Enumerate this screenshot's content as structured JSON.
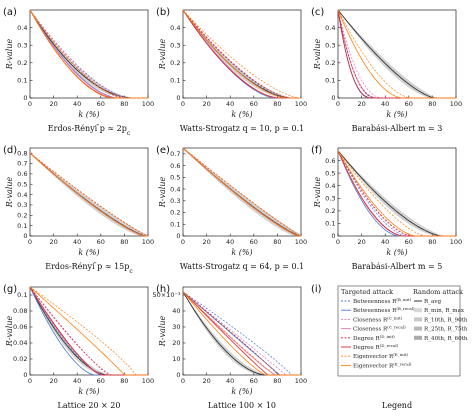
{
  "figure": {
    "ylabel_text": "R-value",
    "xlabel_text": "k (%)",
    "legend_caption": "Legend"
  },
  "colors": {
    "betweenness": "#4a7bd0",
    "closeness": "#e377c2",
    "degree": "#d62728",
    "eigenvector": "#ff7f0e",
    "random_band": "#9a9a9a",
    "random_line": "#222222"
  },
  "chart_data": [
    {
      "id": "a",
      "letter": "(a)",
      "type": "line",
      "caption": "Erdos-Rényi p ≈ 2p_c",
      "caption_display": "Erdos-Rényi ̄p ≈ 2p",
      "caption_sub": "c",
      "xlim": [
        0,
        100
      ],
      "ylim": [
        0,
        0.5
      ],
      "xticks": [
        0,
        20,
        40,
        60,
        80,
        100
      ],
      "yticks": [
        0,
        0.1,
        0.2,
        0.3,
        0.4
      ],
      "ytick_labels": [
        "0",
        "0.1",
        "0.2",
        "0.3",
        "0.4"
      ],
      "y0": 0.5,
      "end_k": {
        "betweenness": 75,
        "closeness": 74,
        "degree": 72,
        "eigenvector": 70,
        "random": 88
      },
      "bend": {
        "betweenness": 1.7,
        "closeness": 1.7,
        "degree": 1.75,
        "eigenvector": 1.7,
        "random": 1.9
      }
    },
    {
      "id": "b",
      "letter": "(b)",
      "type": "line",
      "caption": "Watts-Strogatz q = 10, p = 0.1",
      "xlim": [
        0,
        100
      ],
      "ylim": [
        0,
        0.5
      ],
      "xticks": [
        0,
        20,
        40,
        60,
        80,
        100
      ],
      "yticks": [
        0,
        0.1,
        0.2,
        0.3,
        0.4
      ],
      "ytick_labels": [
        "0",
        "0.1",
        "0.2",
        "0.3",
        "0.4"
      ],
      "y0": 0.5,
      "end_k": {
        "betweenness": 78,
        "closeness": 80,
        "degree": 82,
        "eigenvector": 88,
        "random": 92
      },
      "bend": {
        "betweenness": 1.6,
        "closeness": 1.6,
        "degree": 1.7,
        "eigenvector": 1.6,
        "random": 1.7
      }
    },
    {
      "id": "c",
      "letter": "(c)",
      "type": "line",
      "caption": "Barabási-Albert m = 3",
      "xlim": [
        0,
        100
      ],
      "ylim": [
        0,
        0.5
      ],
      "xticks": [
        0,
        20,
        40,
        60,
        80,
        100
      ],
      "yticks": [
        0,
        0.1,
        0.2,
        0.3,
        0.4
      ],
      "ytick_labels": [
        "0",
        "0.1",
        "0.2",
        "0.3",
        "0.4"
      ],
      "y0": 0.5,
      "end_k": {
        "betweenness": 28,
        "closeness": 34,
        "degree": 30,
        "eigenvector": 55,
        "random": 82
      },
      "bend": {
        "betweenness": 2.4,
        "closeness": 2.4,
        "degree": 2.6,
        "eigenvector": 1.8,
        "random": 1.4
      }
    },
    {
      "id": "d",
      "letter": "(d)",
      "type": "line",
      "caption": "Erdos-Rényi p ≈ 15p_c",
      "caption_display": "Erdos-Rényi ̄p ≈ 15p",
      "caption_sub": "c",
      "xlim": [
        0,
        100
      ],
      "ylim": [
        0,
        0.85
      ],
      "xticks": [
        0,
        20,
        40,
        60,
        80,
        100
      ],
      "yticks": [
        0,
        0.1,
        0.2,
        0.3,
        0.4,
        0.5,
        0.6,
        0.7,
        0.8
      ],
      "ytick_labels": [
        "0",
        "0.1",
        "0.2",
        "0.3",
        "0.4",
        "0.5",
        "0.6",
        "0.7",
        "0.8"
      ],
      "y0": 0.8,
      "end_k": {
        "betweenness": 97,
        "closeness": 97,
        "degree": 97,
        "eigenvector": 97,
        "random": 98
      },
      "bend": {
        "betweenness": 1.25,
        "closeness": 1.25,
        "degree": 1.25,
        "eigenvector": 1.25,
        "random": 1.25
      }
    },
    {
      "id": "e",
      "letter": "(e)",
      "type": "line",
      "caption": "Watts-Strogatz q = 64, p = 0.1",
      "xlim": [
        0,
        100
      ],
      "ylim": [
        0,
        0.75
      ],
      "xticks": [
        0,
        20,
        40,
        60,
        80,
        100
      ],
      "yticks": [
        0,
        0.1,
        0.2,
        0.3,
        0.4,
        0.5,
        0.6,
        0.7
      ],
      "ytick_labels": [
        "0",
        "0.1",
        "0.2",
        "0.3",
        "0.4",
        "0.5",
        "0.6",
        "0.7"
      ],
      "y0": 0.75,
      "end_k": {
        "betweenness": 98,
        "closeness": 98,
        "degree": 98,
        "eigenvector": 98,
        "random": 99
      },
      "bend": {
        "betweenness": 1.2,
        "closeness": 1.2,
        "degree": 1.2,
        "eigenvector": 1.2,
        "random": 1.2
      }
    },
    {
      "id": "f",
      "letter": "(f)",
      "type": "line",
      "caption": "Barabási-Albert m = 5",
      "xlim": [
        0,
        100
      ],
      "ylim": [
        0,
        0.7
      ],
      "xticks": [
        0,
        20,
        40,
        60,
        80,
        100
      ],
      "yticks": [
        0,
        0.1,
        0.2,
        0.3,
        0.4,
        0.5,
        0.6
      ],
      "ytick_labels": [
        "0",
        "0.1",
        "0.2",
        "0.3",
        "0.4",
        "0.5",
        "0.6"
      ],
      "y0": 0.68,
      "end_k": {
        "betweenness": 52,
        "closeness": 55,
        "degree": 56,
        "eigenvector": 66,
        "random": 88
      },
      "bend": {
        "betweenness": 1.8,
        "closeness": 1.8,
        "degree": 1.8,
        "eigenvector": 1.6,
        "random": 1.5
      }
    },
    {
      "id": "g",
      "letter": "(g)",
      "type": "line",
      "caption": "Lattice 20 × 20",
      "xlim": [
        0,
        100
      ],
      "ylim": [
        0,
        0.11
      ],
      "xticks": [
        0,
        20,
        40,
        60,
        80,
        100
      ],
      "yticks": [
        0,
        0.02,
        0.04,
        0.06,
        0.08,
        0.1
      ],
      "ytick_labels": [
        "0",
        "0.02",
        "0.04",
        "0.06",
        "0.08",
        "0.1"
      ],
      "y0": 0.11,
      "end_k": {
        "betweenness": 55,
        "closeness": 62,
        "degree": 60,
        "eigenvector": 80,
        "random": 66
      },
      "bend": {
        "betweenness": 1.6,
        "closeness": 1.4,
        "degree": 1.3,
        "eigenvector": 0.95,
        "random": 1.7
      }
    },
    {
      "id": "h",
      "letter": "(h)",
      "type": "line",
      "caption": "Lattice 100 × 10",
      "xlim": [
        0,
        100
      ],
      "ylim": [
        0,
        55
      ],
      "xticks": [
        0,
        20,
        40,
        60,
        80,
        100
      ],
      "yticks": [
        0,
        10,
        20,
        30,
        40,
        50
      ],
      "ytick_labels": [
        "0",
        "10",
        "20",
        "30",
        "40",
        "50×10⁻³"
      ],
      "y0": 52,
      "end_k": {
        "betweenness": 82,
        "closeness": 78,
        "degree": 72,
        "eigenvector": 70,
        "random": 70
      },
      "bend": {
        "betweenness": 1.0,
        "closeness": 1.1,
        "degree": 1.05,
        "eigenvector": 1.2,
        "random": 1.7
      }
    }
  ],
  "legend": {
    "letter": "(i)",
    "targeted_header": "Targeted attack",
    "random_header": "Random attack",
    "targeted_entries": [
      {
        "label": "Betweenness R",
        "sup": "(B_init)",
        "key": "betweenness",
        "dash": "2,1.5"
      },
      {
        "label": "Betweenness R",
        "sup": "(B_recal)",
        "key": "betweenness",
        "dash": ""
      },
      {
        "label": "Closeness R",
        "sup": "(C_init)",
        "key": "closeness",
        "dash": "2,1.5"
      },
      {
        "label": "Closeness R",
        "sup": "(C_recal)",
        "key": "closeness",
        "dash": ""
      },
      {
        "label": "Degree R",
        "sup": "(D_init)",
        "key": "degree",
        "dash": "2,1.5"
      },
      {
        "label": "Degree R",
        "sup": "(D_recal)",
        "key": "degree",
        "dash": ""
      },
      {
        "label": "Eigenvector R",
        "sup": "(E_init)",
        "key": "eigenvector",
        "dash": "2,1.5"
      },
      {
        "label": "Eigenvector R",
        "sup": "(E_recal)",
        "key": "eigenvector",
        "dash": ""
      }
    ],
    "random_entries": [
      {
        "label": "R_avg",
        "kind": "line"
      },
      {
        "label": "R_min, R_max",
        "kind": "band"
      },
      {
        "label": "R_10th, R_90th",
        "kind": "band"
      },
      {
        "label": "R_25th, R_75th",
        "kind": "band"
      },
      {
        "label": "R_40th, R_60th",
        "kind": "band"
      }
    ]
  }
}
